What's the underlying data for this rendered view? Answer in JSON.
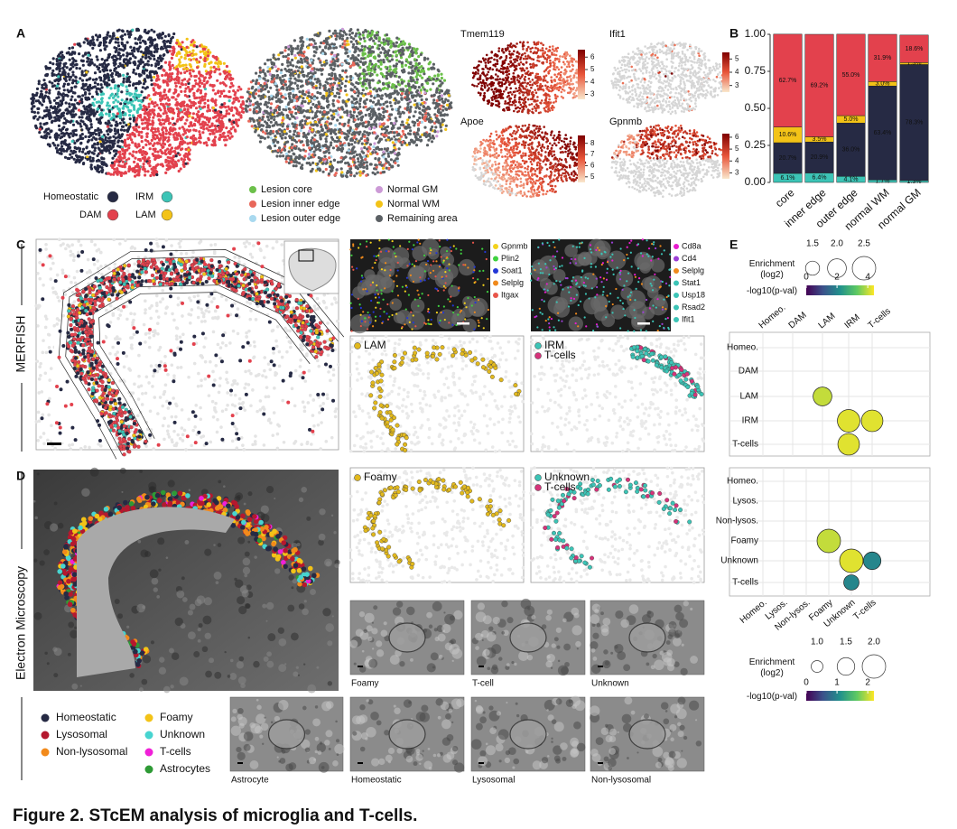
{
  "caption": "Figure 2. STcEM analysis of microglia and T-cells.",
  "panel_labels": [
    "A",
    "B",
    "C",
    "D",
    "E"
  ],
  "umap_legends": {
    "clusters": [
      {
        "name": "Homeostatic",
        "color": "#262a44"
      },
      {
        "name": "IRM",
        "color": "#3cc4b6"
      },
      {
        "name": "DAM",
        "color": "#e3414d"
      },
      {
        "name": "LAM",
        "color": "#f3c317"
      }
    ],
    "regions": [
      {
        "name": "Lesion core",
        "color": "#6cc04a"
      },
      {
        "name": "Normal GM",
        "color": "#cc9ad6"
      },
      {
        "name": "Lesion inner edge",
        "color": "#e8675a"
      },
      {
        "name": "Normal WM",
        "color": "#f3c317"
      },
      {
        "name": "Lesion outer edge",
        "color": "#a9d9ef"
      },
      {
        "name": "Remaining area",
        "color": "#5b6064"
      }
    ]
  },
  "gene_maps": [
    {
      "name": "Tmem119",
      "lim": [
        2.6,
        6.6
      ],
      "ticks": [
        3,
        4,
        5,
        6
      ]
    },
    {
      "name": "Ifit1",
      "lim": [
        2.5,
        5.5
      ],
      "ticks": [
        3,
        4,
        5
      ]
    },
    {
      "name": "Apoe",
      "lim": [
        4.5,
        8.7
      ],
      "ticks": [
        5,
        6,
        7,
        8
      ]
    },
    {
      "name": "Gpnmb",
      "lim": [
        2.5,
        6.3
      ],
      "ticks": [
        3,
        4,
        5,
        6
      ]
    }
  ],
  "chart_data": [
    {
      "type": "bar",
      "stacked": true,
      "categories": [
        "core",
        "inner edge",
        "outer edge",
        "normal WM",
        "normal GM"
      ],
      "ylim": [
        0,
        1
      ],
      "yticks": [
        {
          "value": 0,
          "label": "0.00"
        },
        0.25,
        {
          "value": 0.5,
          "label": "0.50"
        },
        0.75,
        {
          "value": 1,
          "label": "1.00"
        }
      ],
      "series": [
        {
          "color": "#3cc4b6",
          "values": [
            0.061,
            0.064,
            0.041,
            0.017,
            0.013
          ],
          "value_labels": [
            "6.1%",
            "6.4%",
            "4.1%",
            "1.7%",
            "1.3%"
          ]
        },
        {
          "color": "#262a44",
          "values": [
            0.207,
            0.209,
            0.36,
            0.634,
            0.783
          ],
          "value_labels": [
            "20.7%",
            "20.9%",
            "36.0%",
            "63.4%",
            "78.3%"
          ]
        },
        {
          "color": "#f3c317",
          "values": [
            0.106,
            0.035,
            0.05,
            0.03,
            0.013
          ],
          "value_labels": [
            "10.6%",
            "3.5%",
            "5.0%",
            "3.0%",
            "1.3%"
          ]
        },
        {
          "color": "#e3414d",
          "values": [
            0.627,
            0.692,
            0.55,
            0.319,
            0.186
          ],
          "value_labels": [
            "62.7%",
            "69.2%",
            "55.0%",
            "31.9%",
            "18.6%"
          ]
        }
      ]
    },
    {
      "type": "bubble",
      "xcategories": [
        "Homeo.",
        "DAM",
        "LAM",
        "IRM",
        "T-cells"
      ],
      "ycategories": [
        "Homeo.",
        "DAM",
        "LAM",
        "IRM",
        "T-cells"
      ],
      "points": [
        {
          "x": "LAM",
          "y": "LAM",
          "enrichment": 2.0,
          "neglog10p": 4.0
        },
        {
          "x": "IRM",
          "y": "IRM",
          "enrichment": 2.4,
          "neglog10p": 4.2
        },
        {
          "x": "T-cells",
          "y": "IRM",
          "enrichment": 2.3,
          "neglog10p": 4.2
        },
        {
          "x": "IRM",
          "y": "T-cells",
          "enrichment": 2.3,
          "neglog10p": 4.2
        }
      ],
      "size_title": "Enrichment (log2)",
      "size_ticks": [
        1.5,
        {
          "value": 2,
          "label": "2.0"
        },
        2.5
      ],
      "color_title": "-log10(p-val)",
      "color_lim": [
        0,
        4.4
      ],
      "color_ticks": [
        0,
        2,
        4
      ],
      "grid": true
    },
    {
      "type": "bubble",
      "xcategories": [
        "Homeo.",
        "Lysos.",
        "Non-lysos.",
        "Foamy",
        "Unknown",
        "T-cells"
      ],
      "ycategories": [
        "Homeo.",
        "Lysos.",
        "Non-lysos.",
        "Foamy",
        "Unknown",
        "T-cells"
      ],
      "points": [
        {
          "x": "Foamy",
          "y": "Foamy",
          "enrichment": 2.0,
          "neglog10p": 2.0
        },
        {
          "x": "Unknown",
          "y": "Unknown",
          "enrichment": 2.0,
          "neglog10p": 2.1
        },
        {
          "x": "T-cells",
          "y": "Unknown",
          "enrichment": 1.5,
          "neglog10p": 1.0
        },
        {
          "x": "Unknown",
          "y": "T-cells",
          "enrichment": 1.3,
          "neglog10p": 1.0
        }
      ],
      "size_title": "Enrichment (log2)",
      "size_ticks": [
        {
          "value": 1,
          "label": "1.0"
        },
        1.5,
        {
          "value": 2,
          "label": "2.0"
        }
      ],
      "color_title": "-log10(p-val)",
      "color_lim": [
        0,
        2.2
      ],
      "color_ticks": [
        0,
        1,
        2
      ],
      "grid": true
    }
  ],
  "merfish": {
    "side_label": "MERFISH",
    "gene_sets": [
      [
        {
          "name": "Gpnmb",
          "color": "#f3d21c"
        },
        {
          "name": "Plin2",
          "color": "#3fd13f"
        },
        {
          "name": "Soat1",
          "color": "#2337d6"
        },
        {
          "name": "Selplg",
          "color": "#f08a1c"
        },
        {
          "name": "Itgax",
          "color": "#e8554a"
        }
      ],
      [
        {
          "name": "Cd8a",
          "color": "#e81ccf"
        },
        {
          "name": "Cd4",
          "color": "#9b3fd6"
        },
        {
          "name": "Selplg",
          "color": "#f08a1c"
        },
        {
          "name": "Stat1",
          "color": "#3cc4b6"
        },
        {
          "name": "Usp18",
          "color": "#3cc4b6"
        },
        {
          "name": "Rsad2",
          "color": "#3cc4b6"
        },
        {
          "name": "Ifit1",
          "color": "#3cc4b6"
        }
      ]
    ],
    "cell_maps": [
      [
        {
          "name": "LAM",
          "color": "#e2b91e"
        }
      ],
      [
        {
          "name": "IRM",
          "color": "#3cc4b6"
        },
        {
          "name": "T-cells",
          "color": "#d6337a"
        }
      ]
    ]
  },
  "em": {
    "side_label": "Electron Microscopy",
    "legend": [
      {
        "name": "Homeostatic",
        "color": "#262a44"
      },
      {
        "name": "Lysosomal",
        "color": "#b5182e"
      },
      {
        "name": "Non-lysosomal",
        "color": "#f28a1b"
      },
      {
        "name": "Foamy",
        "color": "#f3c317"
      },
      {
        "name": "Unknown",
        "color": "#47d4d0"
      },
      {
        "name": "T-cells",
        "color": "#f020d8"
      },
      {
        "name": "Astrocytes",
        "color": "#2e9a35"
      }
    ],
    "cell_maps": [
      [
        {
          "name": "Foamy",
          "color": "#e2b91e"
        }
      ],
      [
        {
          "name": "Unknown",
          "color": "#3cc4b6"
        },
        {
          "name": "T-cells",
          "color": "#d6337a"
        }
      ]
    ],
    "image_captions": [
      "Foamy",
      "T-cell",
      "Unknown",
      "Astrocyte",
      "Homeostatic",
      "Lysosomal",
      "Non-lysosomal"
    ]
  }
}
